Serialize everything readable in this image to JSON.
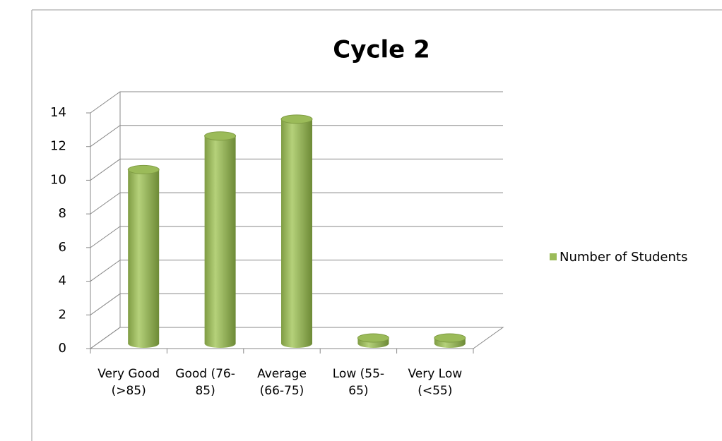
{
  "chart_data": {
    "type": "bar",
    "title": "Cycle 2",
    "categories": [
      "Very Good (>85)",
      "Good (76-85)",
      "Average (66-75)",
      "Low (55-65)",
      "Very Low (<55)"
    ],
    "series": [
      {
        "name": "Number of Students",
        "color": "#9bbb59",
        "values": [
          10,
          12,
          13,
          0,
          0
        ]
      }
    ],
    "ylim": [
      0,
      14
    ],
    "yticks": [
      0,
      2,
      4,
      6,
      8,
      10,
      12,
      14
    ],
    "grid": true,
    "legend": "right"
  }
}
